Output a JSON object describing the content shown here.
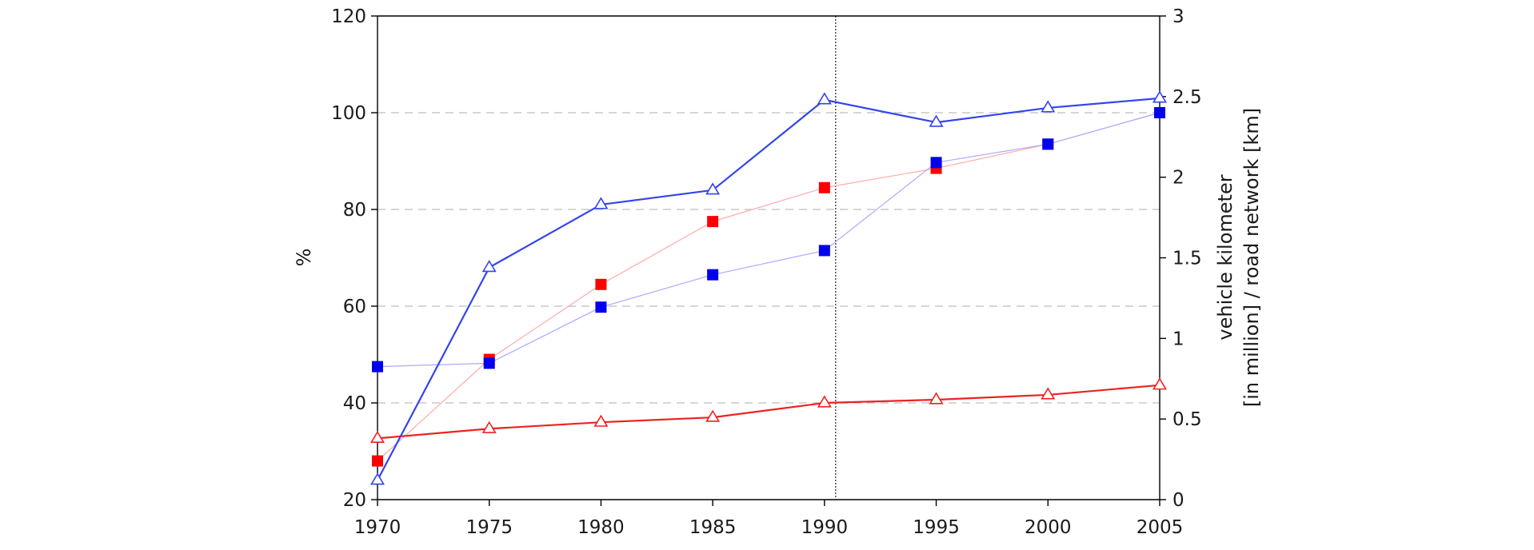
{
  "chart_data": {
    "type": "line",
    "x": [
      1970,
      1975,
      1980,
      1985,
      1990,
      1995,
      2000,
      2005
    ],
    "xlim": [
      1970,
      2005
    ],
    "x_ticks": [
      "1970",
      "1975",
      "1980",
      "1985",
      "1990",
      "1995",
      "2000",
      "2005"
    ],
    "ylabel": "%",
    "ylim": [
      20,
      120
    ],
    "y_ticks": [
      "20",
      "40",
      "60",
      "80",
      "100",
      "120"
    ],
    "y2label_line1": "vehicle kilometer",
    "y2label_line2": "[in million] / road network [km]",
    "y2lim": [
      0,
      3
    ],
    "y2_ticks": [
      "0",
      "0.5",
      "1",
      "1.5",
      "2",
      "2.5",
      "3"
    ],
    "grid": "horizontal dashed",
    "reference_line_x": 1990.5,
    "series": [
      {
        "axis": "left",
        "marker": "square",
        "color": "#ff0000",
        "line_color": "#ffaaaa",
        "line_width": 1.2,
        "values": [
          28,
          49,
          64.5,
          77.5,
          84.5,
          88.5,
          93.5,
          100
        ]
      },
      {
        "axis": "left",
        "marker": "square",
        "color": "#0000ee",
        "line_color": "#aaaaff",
        "line_width": 1.2,
        "values": [
          47.5,
          48.2,
          59.8,
          66.5,
          71.5,
          89.7,
          93.5,
          100
        ]
      },
      {
        "axis": "right",
        "marker": "triangle",
        "color": "#ee2222",
        "line_color": "#ee2222",
        "line_width": 2.2,
        "values": [
          0.38,
          0.44,
          0.48,
          0.51,
          0.6,
          0.62,
          0.65,
          0.71
        ]
      },
      {
        "axis": "right",
        "marker": "triangle",
        "color": "#3344ee",
        "line_color": "#3344ee",
        "line_width": 2.2,
        "values": [
          0.12,
          1.44,
          1.83,
          1.92,
          2.48,
          2.34,
          2.43,
          2.49
        ]
      }
    ]
  }
}
